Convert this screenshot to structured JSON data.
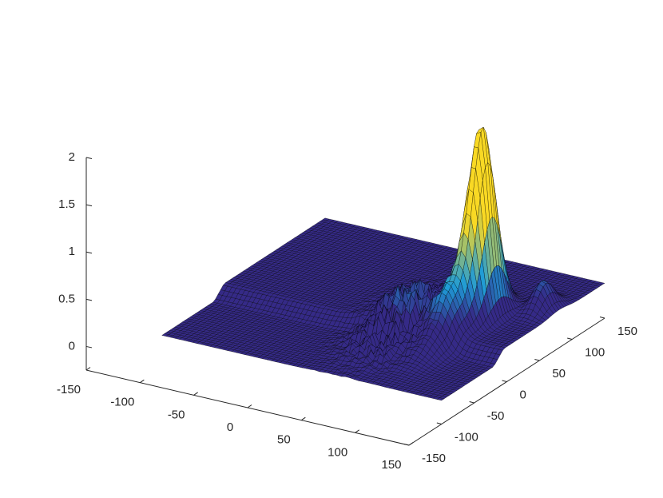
{
  "chart_data": {
    "type": "surface",
    "title": "",
    "xlabel": "",
    "ylabel": "",
    "zlabel": "",
    "xlim": [
      -150,
      150
    ],
    "ylim": [
      -150,
      150
    ],
    "zlim": [
      -0.25,
      2
    ],
    "x_ticks": [
      "-150",
      "-100",
      "-50",
      "0",
      "50",
      "100",
      "150"
    ],
    "y_ticks": [
      "-150",
      "-100",
      "-50",
      "0",
      "50",
      "100",
      "150"
    ],
    "z_ticks": [
      "0",
      "0.5",
      "1",
      "1.5",
      "2"
    ],
    "grid": false,
    "colormap": "parula",
    "colors": {
      "low": "#352a87",
      "mid": "#1e9bd7",
      "high": "#f9d924",
      "edge": "#000000",
      "axis": "#262626"
    },
    "features": [
      {
        "kind": "peak",
        "x": 100,
        "y": 45,
        "z": 1.8,
        "spread_x": 12,
        "spread_y": 22
      },
      {
        "kind": "ridge",
        "x": 95,
        "y": 10,
        "z": 0.45
      },
      {
        "kind": "shoulder",
        "x": 135,
        "y": 80,
        "z": 0.3
      },
      {
        "kind": "bumps",
        "x": 55,
        "y": 0,
        "z": 0.45
      },
      {
        "kind": "step",
        "y_below": -20,
        "z_above": 0.12,
        "z_below": 0.0
      }
    ]
  }
}
